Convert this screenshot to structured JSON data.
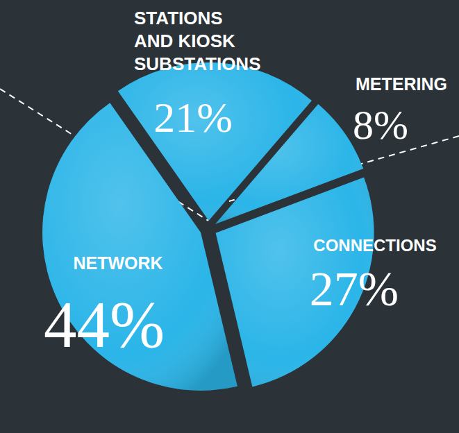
{
  "chart_data": {
    "type": "pie",
    "categories": [
      "STATIONS AND KIOSK SUBSTATIONS",
      "METERING",
      "CONNECTIONS",
      "NETWORK"
    ],
    "values": [
      21,
      8,
      27,
      44
    ],
    "value_labels": [
      "21%",
      "8%",
      "27%",
      "44%"
    ],
    "color": "#2bb5e8",
    "data_labels": true
  }
}
